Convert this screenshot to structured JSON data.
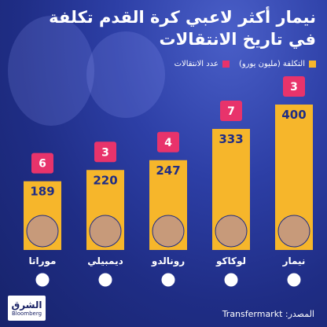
{
  "title_line1": "نيمار أكثر لاعبي كرة القدم تكلفة",
  "title_line2": "في تاريخ الانتقالات",
  "legend": {
    "cost_label": "التكلفة (مليون يورو)",
    "transfers_label": "عدد الانتقالات"
  },
  "source_label": "المصدر: Transfermarkt",
  "brand": {
    "arabic": "الشرق",
    "english": "Bloomberg"
  },
  "colors": {
    "bar": "#f6b62b",
    "badge": "#e8336b",
    "background": "#2d3fa6",
    "text": "#ffffff"
  },
  "chart_data": {
    "type": "bar",
    "categories": [
      "موراتا",
      "ديمبيلي",
      "رونالدو",
      "لوكاكو",
      "نيمار"
    ],
    "series": [
      {
        "name": "التكلفة (مليون يورو)",
        "values": [
          189,
          220,
          247,
          333,
          400
        ]
      },
      {
        "name": "عدد الانتقالات",
        "values": [
          6,
          3,
          4,
          7,
          3
        ]
      }
    ],
    "club_icons": [
      "atletico-madrid-crest-icon",
      "psg-crest-icon",
      "al-nassr-crest-icon",
      "chelsea-crest-icon",
      "al-hilal-crest-icon"
    ],
    "ylim": [
      0,
      400
    ],
    "title": "نيمار أكثر لاعبي كرة القدم تكلفة في تاريخ الانتقالات",
    "xlabel": "",
    "ylabel": ""
  }
}
